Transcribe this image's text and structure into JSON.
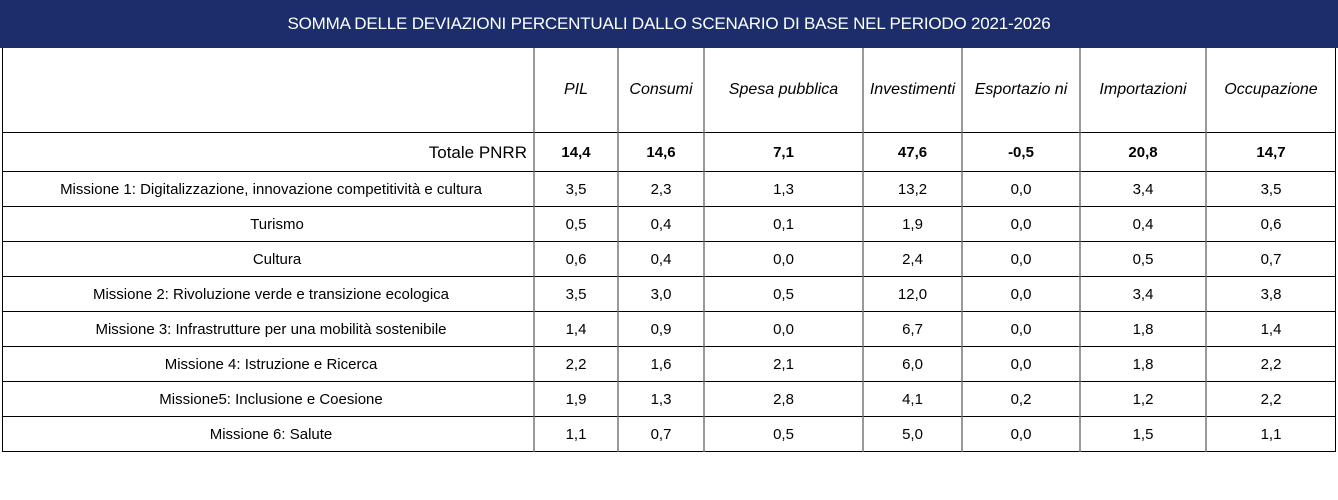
{
  "title": "SOMMA DELLE DEVIAZIONI PERCENTUALI DALLO SCENARIO DI BASE NEL PERIODO 2021-2026",
  "columns": [
    "PIL",
    "Consumi",
    "Spesa pubblica",
    "Investimenti",
    "Esportazio ni",
    "Importazioni",
    "Occupazione"
  ],
  "total": {
    "label": "Totale PNRR",
    "values": [
      "14,4",
      "14,6",
      "7,1",
      "47,6",
      "-0,5",
      "20,8",
      "14,7"
    ]
  },
  "rows": [
    {
      "label": "Missione 1: Digitalizzazione, innovazione competitività e cultura",
      "values": [
        "3,5",
        "2,3",
        "1,3",
        "13,2",
        "0,0",
        "3,4",
        "3,5"
      ]
    },
    {
      "label": "Turismo",
      "values": [
        "0,5",
        "0,4",
        "0,1",
        "1,9",
        "0,0",
        "0,4",
        "0,6"
      ]
    },
    {
      "label": "Cultura",
      "values": [
        "0,6",
        "0,4",
        "0,0",
        "2,4",
        "0,0",
        "0,5",
        "0,7"
      ]
    },
    {
      "label": "Missione 2: Rivoluzione verde e transizione ecologica",
      "values": [
        "3,5",
        "3,0",
        "0,5",
        "12,0",
        "0,0",
        "3,4",
        "3,8"
      ]
    },
    {
      "label": "Missione 3: Infrastrutture per una mobilità sostenibile",
      "values": [
        "1,4",
        "0,9",
        "0,0",
        "6,7",
        "0,0",
        "1,8",
        "1,4"
      ]
    },
    {
      "label": "Missione 4: Istruzione e Ricerca",
      "values": [
        "2,2",
        "1,6",
        "2,1",
        "6,0",
        "0,0",
        "1,8",
        "2,2"
      ]
    },
    {
      "label": "Missione5: Inclusione e Coesione",
      "values": [
        "1,9",
        "1,3",
        "2,8",
        "4,1",
        "0,2",
        "1,2",
        "2,2"
      ]
    },
    {
      "label": "Missione 6: Salute",
      "values": [
        "1,1",
        "0,7",
        "0,5",
        "5,0",
        "0,0",
        "1,5",
        "1,1"
      ]
    }
  ]
}
